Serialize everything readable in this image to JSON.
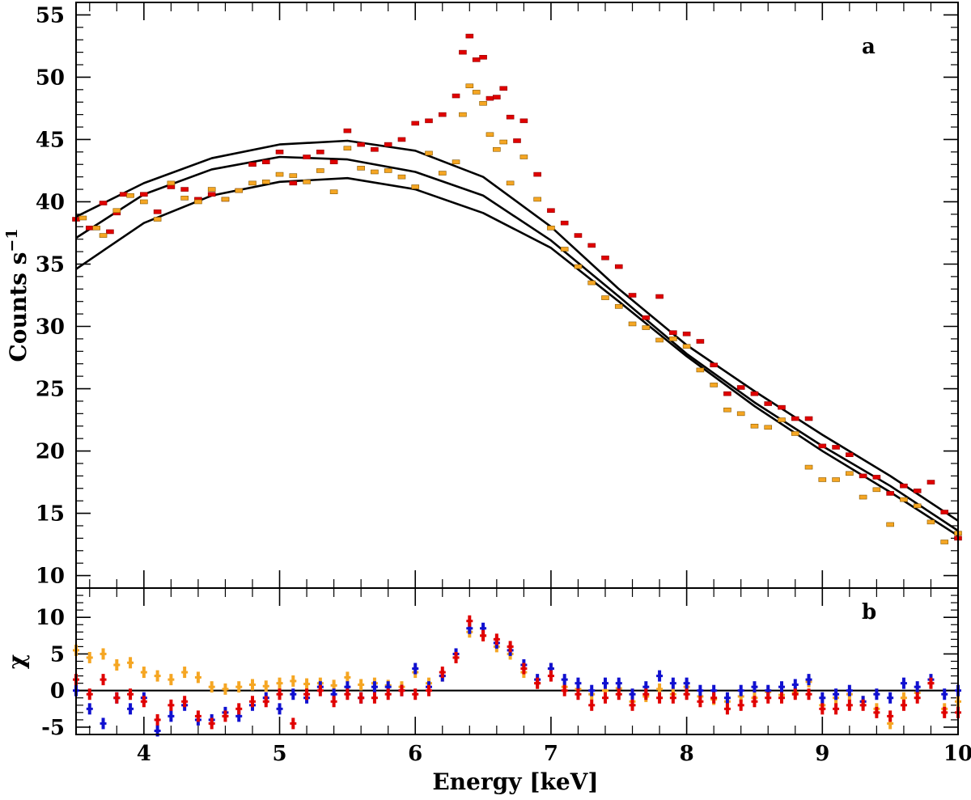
{
  "chart_data": [
    {
      "panel": "a",
      "type": "scatter",
      "panel_label": "a",
      "xlabel": "Energy [keV]",
      "ylabel": "Counts s",
      "ylabel_superscript": "−1",
      "xlim": [
        3.5,
        10.0
      ],
      "ylim": [
        9.0,
        56.0
      ],
      "x_ticks": [
        4,
        5,
        6,
        7,
        8,
        9,
        10
      ],
      "y_ticks": [
        10,
        15,
        20,
        25,
        30,
        35,
        40,
        45,
        50,
        55
      ],
      "y_tick_labels": [
        "10",
        "15",
        "20",
        "25",
        "30",
        "35",
        "40",
        "45",
        "50",
        "55"
      ],
      "grid": false,
      "colors": {
        "red": "#e00000",
        "orange": "#f5a623",
        "model": "#000000"
      },
      "series": [
        {
          "name": "red data",
          "color": "#e00000",
          "kind": "points",
          "x": [
            3.5,
            3.6,
            3.7,
            3.75,
            3.8,
            3.85,
            4.0,
            4.1,
            4.2,
            4.3,
            4.4,
            4.5,
            4.6,
            4.7,
            4.8,
            4.9,
            5.0,
            5.1,
            5.2,
            5.3,
            5.4,
            5.5,
            5.6,
            5.7,
            5.8,
            5.9,
            6.0,
            6.1,
            6.2,
            6.3,
            6.35,
            6.4,
            6.45,
            6.5,
            6.55,
            6.6,
            6.65,
            6.7,
            6.75,
            6.8,
            6.9,
            7.0,
            7.1,
            7.2,
            7.3,
            7.4,
            7.5,
            7.6,
            7.7,
            7.8,
            7.9,
            8.0,
            8.1,
            8.2,
            8.3,
            8.4,
            8.5,
            8.6,
            8.7,
            8.8,
            8.9,
            9.0,
            9.1,
            9.2,
            9.3,
            9.4,
            9.5,
            9.6,
            9.7,
            9.8,
            9.9,
            10.0
          ],
          "y": [
            38.6,
            37.9,
            39.9,
            37.6,
            39.1,
            40.6,
            40.6,
            39.2,
            41.2,
            41.0,
            40.2,
            40.6,
            40.2,
            40.9,
            43.0,
            43.2,
            44.0,
            41.5,
            43.6,
            44.0,
            43.2,
            45.7,
            44.6,
            44.2,
            44.6,
            45.0,
            46.3,
            46.5,
            47.0,
            48.5,
            52.0,
            53.3,
            51.4,
            51.6,
            48.3,
            48.4,
            49.1,
            46.8,
            44.9,
            46.5,
            42.2,
            39.3,
            38.3,
            37.3,
            36.5,
            35.5,
            34.8,
            32.5,
            30.7,
            32.4,
            29.5,
            29.4,
            28.8,
            26.9,
            24.6,
            25.1,
            24.6,
            23.8,
            23.5,
            22.6,
            22.6,
            20.4,
            20.3,
            19.7,
            18.0,
            17.9,
            16.6,
            17.2,
            16.8,
            17.5,
            15.1,
            13.0
          ]
        },
        {
          "name": "orange data",
          "color": "#f5a623",
          "kind": "points",
          "x": [
            3.55,
            3.65,
            3.7,
            3.8,
            3.9,
            4.0,
            4.1,
            4.2,
            4.3,
            4.4,
            4.5,
            4.6,
            4.7,
            4.8,
            4.9,
            5.0,
            5.1,
            5.2,
            5.3,
            5.4,
            5.5,
            5.6,
            5.7,
            5.8,
            5.9,
            6.0,
            6.1,
            6.2,
            6.3,
            6.35,
            6.4,
            6.45,
            6.5,
            6.55,
            6.6,
            6.65,
            6.7,
            6.8,
            6.9,
            7.0,
            7.1,
            7.2,
            7.3,
            7.4,
            7.5,
            7.6,
            7.7,
            7.8,
            7.9,
            8.0,
            8.1,
            8.2,
            8.3,
            8.4,
            8.5,
            8.6,
            8.7,
            8.8,
            8.9,
            9.0,
            9.1,
            9.2,
            9.3,
            9.4,
            9.5,
            9.6,
            9.7,
            9.8,
            9.9,
            10.0
          ],
          "y": [
            38.7,
            37.9,
            37.3,
            39.3,
            40.5,
            40.0,
            38.6,
            41.5,
            40.3,
            40.0,
            41.0,
            40.2,
            40.9,
            41.5,
            41.6,
            42.2,
            42.1,
            41.6,
            42.5,
            40.8,
            44.3,
            42.7,
            42.4,
            42.5,
            42.0,
            41.2,
            43.9,
            42.3,
            43.2,
            47.0,
            49.3,
            48.8,
            47.9,
            45.4,
            44.2,
            44.8,
            41.5,
            43.6,
            40.2,
            37.9,
            36.2,
            34.8,
            33.5,
            32.3,
            31.6,
            30.2,
            29.9,
            28.9,
            29.0,
            28.4,
            26.5,
            25.3,
            23.3,
            23.0,
            22.0,
            21.9,
            22.5,
            21.4,
            18.7,
            17.7,
            17.7,
            18.2,
            16.3,
            16.9,
            14.1,
            16.1,
            15.6,
            14.3,
            12.7,
            13.4
          ]
        },
        {
          "name": "model upper",
          "color": "#000000",
          "kind": "line",
          "x": [
            3.5,
            4.0,
            4.5,
            5.0,
            5.5,
            6.0,
            6.5,
            7.0,
            7.5,
            8.0,
            8.5,
            9.0,
            9.5,
            10.0
          ],
          "y": [
            38.8,
            41.5,
            43.5,
            44.6,
            44.9,
            44.1,
            42.0,
            38.0,
            33.0,
            28.5,
            24.8,
            21.3,
            18.0,
            14.4
          ]
        },
        {
          "name": "model middle",
          "color": "#000000",
          "kind": "line",
          "x": [
            3.5,
            4.0,
            4.5,
            5.0,
            5.5,
            6.0,
            6.5,
            7.0,
            7.5,
            8.0,
            8.5,
            9.0,
            9.5,
            10.0
          ],
          "y": [
            37.1,
            40.6,
            42.6,
            43.6,
            43.4,
            42.4,
            40.5,
            36.9,
            32.4,
            27.8,
            23.9,
            20.4,
            17.2,
            13.6
          ]
        },
        {
          "name": "model lower",
          "color": "#000000",
          "kind": "line",
          "x": [
            3.5,
            4.0,
            4.5,
            5.0,
            5.5,
            6.0,
            6.5,
            7.0,
            7.5,
            8.0,
            8.5,
            9.0,
            9.5,
            10.0
          ],
          "y": [
            34.6,
            38.3,
            40.5,
            41.6,
            41.9,
            41.0,
            39.1,
            36.3,
            32.0,
            27.6,
            23.6,
            20.0,
            16.7,
            13.2
          ]
        }
      ]
    },
    {
      "panel": "b",
      "type": "scatter",
      "panel_label": "b",
      "xlabel": "Energy [keV]",
      "ylabel": "χ",
      "xlim": [
        3.5,
        10.0
      ],
      "ylim": [
        -6.0,
        14.0
      ],
      "x_ticks": [
        4,
        5,
        6,
        7,
        8,
        9,
        10
      ],
      "x_tick_labels": [
        "4",
        "5",
        "6",
        "7",
        "8",
        "9",
        "10"
      ],
      "y_ticks": [
        -5,
        0,
        5,
        10
      ],
      "y_tick_labels": [
        "-5",
        "0",
        "5",
        "10"
      ],
      "zero_line": 0,
      "grid": false,
      "series": [
        {
          "name": "orange residuals",
          "color": "#f5a623",
          "x": [
            3.5,
            3.6,
            3.7,
            3.8,
            3.9,
            4.0,
            4.1,
            4.2,
            4.3,
            4.4,
            4.5,
            4.6,
            4.7,
            4.8,
            4.9,
            5.0,
            5.1,
            5.2,
            5.3,
            5.4,
            5.5,
            5.6,
            5.7,
            5.8,
            5.9,
            6.0,
            6.1,
            6.2,
            6.3,
            6.4,
            6.5,
            6.6,
            6.7,
            6.8,
            6.9,
            7.0,
            7.1,
            7.2,
            7.3,
            7.4,
            7.5,
            7.6,
            7.7,
            7.8,
            7.9,
            8.0,
            8.1,
            8.2,
            8.3,
            8.4,
            8.5,
            8.6,
            8.7,
            8.8,
            8.9,
            9.0,
            9.1,
            9.2,
            9.3,
            9.4,
            9.5,
            9.6,
            9.7,
            9.8,
            9.9,
            10.0
          ],
          "y": [
            5.5,
            4.5,
            5.0,
            3.5,
            3.8,
            2.5,
            2.0,
            1.5,
            2.5,
            1.8,
            0.5,
            0.2,
            0.5,
            0.8,
            0.6,
            1.0,
            1.3,
            0.9,
            1.0,
            0.7,
            1.8,
            0.8,
            1.0,
            0.7,
            0.5,
            2.5,
            1.0,
            2.0,
            4.5,
            8.0,
            7.5,
            6.0,
            5.0,
            2.5,
            1.0,
            3.0,
            0.5,
            0.2,
            -0.5,
            0.0,
            0.3,
            -1.5,
            -0.8,
            0.2,
            -0.5,
            0.5,
            -0.8,
            -1.2,
            -1.5,
            -0.8,
            -1.0,
            -0.2,
            -0.6,
            -0.3,
            1.2,
            -2.0,
            -1.0,
            -0.5,
            -1.5,
            -2.5,
            -4.5,
            -1.0,
            -0.3,
            1.0,
            -2.5,
            -1.5
          ]
        },
        {
          "name": "blue residuals",
          "color": "#1010d0",
          "x": [
            3.5,
            3.6,
            3.7,
            3.8,
            3.9,
            4.0,
            4.1,
            4.2,
            4.3,
            4.4,
            4.5,
            4.6,
            4.7,
            4.8,
            4.9,
            5.0,
            5.1,
            5.2,
            5.3,
            5.4,
            5.5,
            5.6,
            5.7,
            5.8,
            5.9,
            6.0,
            6.1,
            6.2,
            6.3,
            6.4,
            6.5,
            6.6,
            6.7,
            6.8,
            6.9,
            7.0,
            7.1,
            7.2,
            7.3,
            7.4,
            7.5,
            7.6,
            7.7,
            7.8,
            7.9,
            8.0,
            8.1,
            8.2,
            8.3,
            8.4,
            8.5,
            8.6,
            8.7,
            8.8,
            8.9,
            9.0,
            9.1,
            9.2,
            9.3,
            9.4,
            9.5,
            9.6,
            9.7,
            9.8,
            9.9,
            10.0
          ],
          "y": [
            0.0,
            -2.5,
            -4.5,
            -1.0,
            -2.5,
            -1.0,
            -5.5,
            -3.5,
            -2.0,
            -4.0,
            -4.0,
            -3.0,
            -3.5,
            -2.0,
            -1.0,
            -2.5,
            -0.5,
            -1.0,
            0.5,
            -0.5,
            0.5,
            -1.0,
            0.5,
            0.5,
            0.0,
            3.0,
            0.5,
            2.0,
            5.0,
            8.5,
            8.5,
            6.5,
            5.5,
            3.5,
            1.5,
            3.0,
            1.5,
            1.0,
            0.0,
            1.0,
            1.0,
            -0.5,
            0.5,
            2.0,
            1.0,
            1.0,
            0.0,
            0.0,
            -1.0,
            0.0,
            0.5,
            0.0,
            0.5,
            0.8,
            1.5,
            -1.0,
            -0.5,
            0.0,
            -1.5,
            -0.5,
            -1.0,
            1.0,
            0.5,
            1.5,
            -0.5,
            0.0
          ]
        },
        {
          "name": "red residuals",
          "color": "#e00000",
          "x": [
            3.5,
            3.6,
            3.7,
            3.8,
            3.9,
            4.0,
            4.1,
            4.2,
            4.3,
            4.4,
            4.5,
            4.6,
            4.7,
            4.8,
            4.9,
            5.0,
            5.1,
            5.2,
            5.3,
            5.4,
            5.5,
            5.6,
            5.7,
            5.8,
            5.9,
            6.0,
            6.1,
            6.2,
            6.3,
            6.4,
            6.5,
            6.6,
            6.7,
            6.8,
            6.9,
            7.0,
            7.1,
            7.2,
            7.3,
            7.4,
            7.5,
            7.6,
            7.7,
            7.8,
            7.9,
            8.0,
            8.1,
            8.2,
            8.3,
            8.4,
            8.5,
            8.6,
            8.7,
            8.8,
            8.9,
            9.0,
            9.1,
            9.2,
            9.3,
            9.4,
            9.5,
            9.6,
            9.7,
            9.8,
            9.9,
            10.0
          ],
          "y": [
            1.5,
            -0.5,
            1.5,
            -1.0,
            -0.5,
            -1.5,
            -4.0,
            -2.0,
            -1.5,
            -3.5,
            -4.5,
            -3.5,
            -2.5,
            -1.5,
            -1.5,
            -0.5,
            -4.5,
            -0.5,
            0.0,
            -1.5,
            -0.5,
            -1.0,
            -1.0,
            -0.5,
            0.0,
            -0.5,
            0.0,
            2.5,
            4.5,
            9.5,
            7.5,
            7.0,
            6.0,
            3.0,
            1.0,
            2.0,
            0.0,
            -0.5,
            -2.0,
            -1.0,
            -0.5,
            -2.0,
            -0.5,
            -1.0,
            -1.0,
            -0.5,
            -1.5,
            -1.0,
            -2.5,
            -2.0,
            -1.5,
            -1.0,
            -1.0,
            -0.5,
            -0.5,
            -2.5,
            -2.5,
            -2.0,
            -2.0,
            -3.0,
            -3.5,
            -2.0,
            -1.0,
            1.0,
            -3.0,
            -3.0
          ]
        }
      ]
    }
  ]
}
